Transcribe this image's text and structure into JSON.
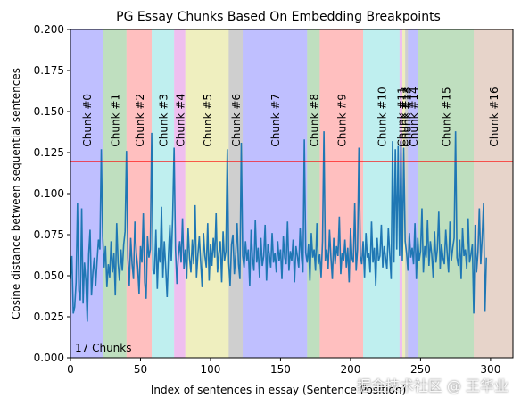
{
  "chart_data": {
    "type": "line",
    "title": "PG Essay Chunks Based On Embedding Breakpoints",
    "xlabel": "Index of sentences in essay (Sentence Position)",
    "ylabel": "Cosine distance between sequential sentences",
    "xlim": [
      0,
      316
    ],
    "ylim": [
      0,
      0.2
    ],
    "xticks": [
      0,
      50,
      100,
      150,
      200,
      250,
      300
    ],
    "yticks": [
      0.0,
      0.025,
      0.05,
      0.075,
      0.1,
      0.125,
      0.15,
      0.175,
      0.2
    ],
    "xtick_labels": [
      "0",
      "50",
      "100",
      "150",
      "200",
      "250",
      "300"
    ],
    "ytick_labels": [
      "0.000",
      "0.025",
      "0.050",
      "0.075",
      "0.100",
      "0.125",
      "0.150",
      "0.175",
      "0.200"
    ],
    "threshold": {
      "y": 0.1195,
      "color": "#ff0000"
    },
    "series": [
      {
        "color": "#1f77b4",
        "values": [
          0.048,
          0.062,
          0.027,
          0.031,
          0.046,
          0.094,
          0.041,
          0.035,
          0.091,
          0.033,
          0.058,
          0.047,
          0.022,
          0.063,
          0.078,
          0.038,
          0.052,
          0.061,
          0.044,
          0.059,
          0.072,
          0.066,
          0.127,
          0.074,
          0.055,
          0.068,
          0.043,
          0.057,
          0.049,
          0.071,
          0.052,
          0.064,
          0.038,
          0.082,
          0.058,
          0.047,
          0.066,
          0.053,
          0.069,
          0.077,
          0.126,
          0.061,
          0.044,
          0.073,
          0.057,
          0.048,
          0.083,
          0.064,
          0.055,
          0.039,
          0.068,
          0.058,
          0.088,
          0.046,
          0.036,
          0.074,
          0.061,
          0.066,
          0.137,
          0.053,
          0.051,
          0.078,
          0.042,
          0.067,
          0.058,
          0.092,
          0.049,
          0.071,
          0.055,
          0.037,
          0.063,
          0.081,
          0.059,
          0.087,
          0.128,
          0.066,
          0.045,
          0.062,
          0.071,
          0.058,
          0.085,
          0.054,
          0.066,
          0.048,
          0.079,
          0.061,
          0.052,
          0.072,
          0.057,
          0.093,
          0.049,
          0.063,
          0.074,
          0.058,
          0.043,
          0.076,
          0.062,
          0.055,
          0.082,
          0.047,
          0.069,
          0.056,
          0.073,
          0.061,
          0.088,
          0.052,
          0.064,
          0.071,
          0.046,
          0.077,
          0.059,
          0.065,
          0.127,
          0.058,
          0.044,
          0.069,
          0.075,
          0.051,
          0.063,
          0.082,
          0.057,
          0.048,
          0.131,
          0.062,
          0.055,
          0.071,
          0.059,
          0.066,
          0.044,
          0.078,
          0.061,
          0.053,
          0.084,
          0.058,
          0.067,
          0.049,
          0.073,
          0.056,
          0.062,
          0.081,
          0.047,
          0.069,
          0.063,
          0.055,
          0.076,
          0.058,
          0.064,
          0.052,
          0.071,
          0.059,
          0.066,
          0.048,
          0.074,
          0.061,
          0.057,
          0.083,
          0.053,
          0.065,
          0.059,
          0.072,
          0.046,
          0.068,
          0.062,
          0.055,
          0.079,
          0.061,
          0.052,
          0.133,
          0.064,
          0.058,
          0.069,
          0.047,
          0.076,
          0.061,
          0.066,
          0.053,
          0.082,
          0.057,
          0.063,
          0.049,
          0.071,
          0.138,
          0.059,
          0.066,
          0.054,
          0.078,
          0.061,
          0.048,
          0.073,
          0.057,
          0.068,
          0.062,
          0.086,
          0.051,
          0.064,
          0.059,
          0.072,
          0.055,
          0.067,
          0.046,
          0.079,
          0.061,
          0.058,
          0.094,
          0.053,
          0.066,
          0.128,
          0.062,
          0.057,
          0.071,
          0.049,
          0.076,
          0.061,
          0.064,
          0.052,
          0.083,
          0.058,
          0.067,
          0.044,
          0.073,
          0.059,
          0.062,
          0.081,
          0.055,
          0.068,
          0.061,
          0.054,
          0.079,
          0.063,
          0.048,
          0.132,
          0.058,
          0.127,
          0.066,
          0.129,
          0.062,
          0.132,
          0.059,
          0.128,
          0.071,
          0.064,
          0.053,
          0.076,
          0.061,
          0.067,
          0.057,
          0.082,
          0.048,
          0.073,
          0.059,
          0.065,
          0.091,
          0.052,
          0.068,
          0.061,
          0.084,
          0.056,
          0.071,
          0.063,
          0.049,
          0.077,
          0.058,
          0.066,
          0.089,
          0.054,
          0.069,
          0.061,
          0.057,
          0.078,
          0.064,
          0.052,
          0.083,
          0.059,
          0.067,
          0.073,
          0.138,
          0.061,
          0.056,
          0.072,
          0.048,
          0.079,
          0.062,
          0.066,
          0.054,
          0.085,
          0.058,
          0.063,
          0.069,
          0.027,
          0.081,
          0.052,
          0.064,
          0.091,
          0.057,
          0.073,
          0.094,
          0.028,
          0.061
        ]
      }
    ],
    "regions": [
      {
        "label": "Chunk #0",
        "start": 0,
        "end": 23,
        "color": "#0000ff"
      },
      {
        "label": "Chunk #1",
        "start": 23,
        "end": 40,
        "color": "#008000"
      },
      {
        "label": "Chunk #2",
        "start": 40,
        "end": 58,
        "color": "#ff0000"
      },
      {
        "label": "Chunk #3",
        "start": 58,
        "end": 74,
        "color": "#00bfbf"
      },
      {
        "label": "Chunk #4",
        "start": 74,
        "end": 82,
        "color": "#bf00bf"
      },
      {
        "label": "Chunk #5",
        "start": 82,
        "end": 113,
        "color": "#bfbf00"
      },
      {
        "label": "Chunk #6",
        "start": 113,
        "end": 123,
        "color": "#404040"
      },
      {
        "label": "Chunk #7",
        "start": 123,
        "end": 169,
        "color": "#0000ff"
      },
      {
        "label": "Chunk #8",
        "start": 169,
        "end": 178,
        "color": "#008000"
      },
      {
        "label": "Chunk #9",
        "start": 178,
        "end": 209,
        "color": "#ff0000"
      },
      {
        "label": "Chunk #10",
        "start": 209,
        "end": 235,
        "color": "#00bfbf"
      },
      {
        "label": "Chunk #11",
        "start": 235,
        "end": 237,
        "color": "#bf00bf"
      },
      {
        "label": "Chunk #12",
        "start": 237,
        "end": 239,
        "color": "#bfbf00"
      },
      {
        "label": "Chunk #13",
        "start": 239,
        "end": 241,
        "color": "#404040"
      },
      {
        "label": "Chunk #14",
        "start": 241,
        "end": 248,
        "color": "#0000ff"
      },
      {
        "label": "Chunk #15",
        "start": 248,
        "end": 288,
        "color": "#008000"
      },
      {
        "label": "Chunk #16",
        "start": 288,
        "end": 316,
        "color": "#a0522d"
      }
    ],
    "annotation": "17 Chunks"
  },
  "watermark": "掘金技术社区 @ 王华业"
}
